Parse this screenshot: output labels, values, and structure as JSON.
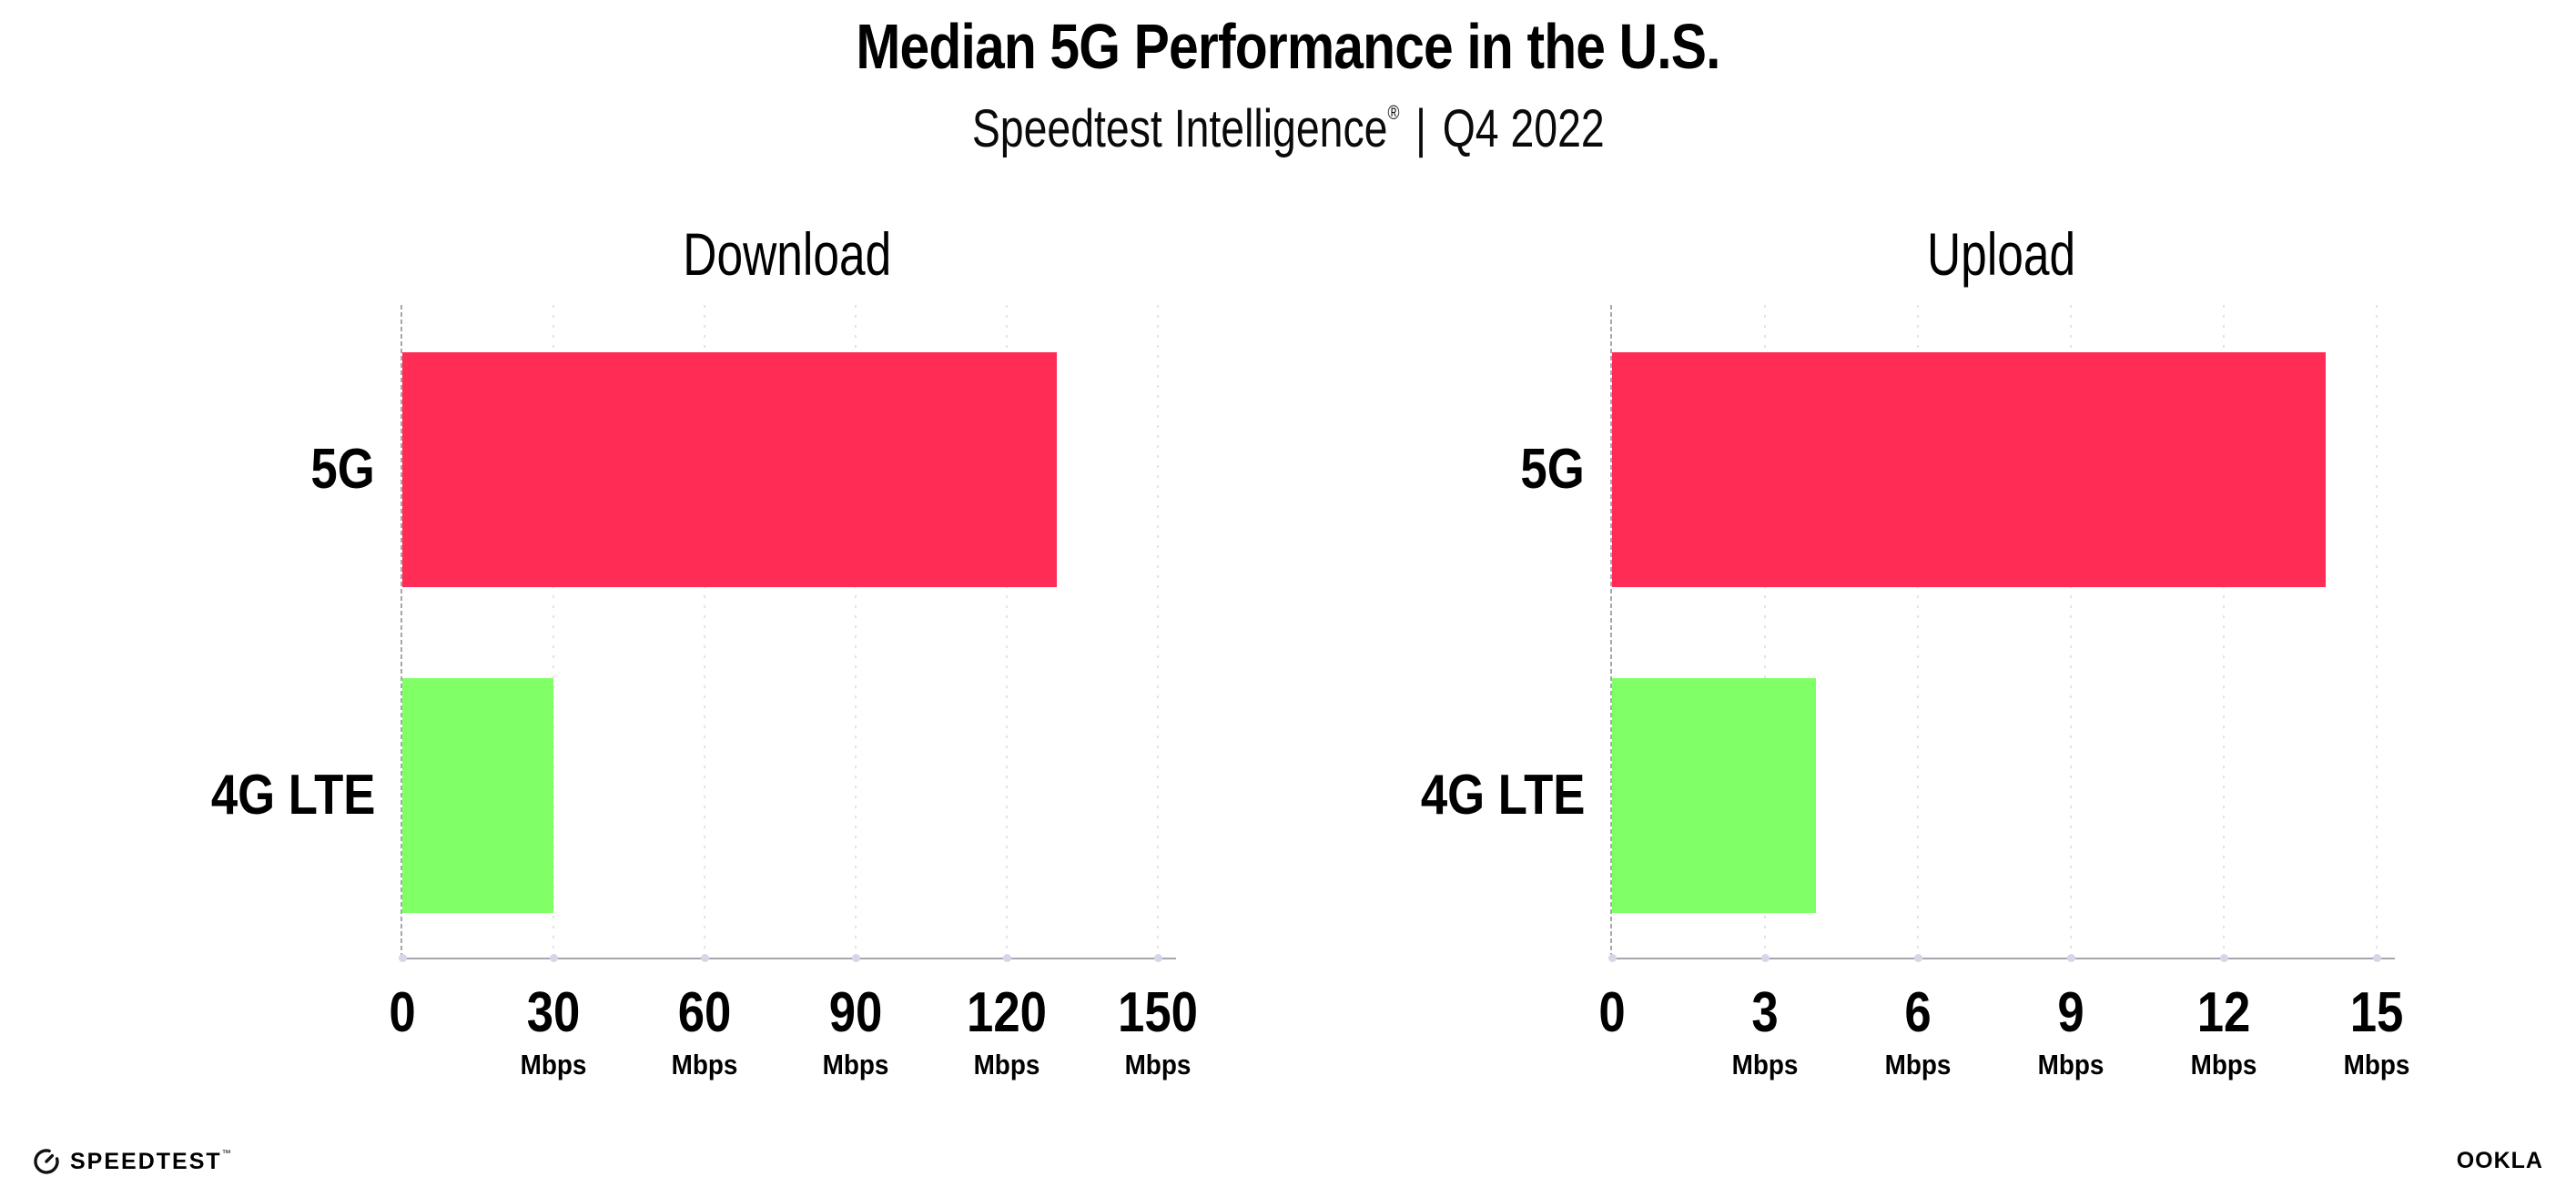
{
  "header": {
    "title": "Median 5G Performance in the U.S.",
    "subtitle_brand": "Speedtest Intelligence",
    "subtitle_reg": "®",
    "subtitle_separator": "|",
    "subtitle_period": "Q4 2022"
  },
  "chart_data": [
    {
      "type": "bar",
      "orientation": "horizontal",
      "title": "Download",
      "categories": [
        "5G",
        "4G LTE"
      ],
      "values": [
        130,
        30
      ],
      "unit": "Mbps",
      "xticks": [
        0,
        30,
        60,
        90,
        120,
        150
      ],
      "xlim": [
        0,
        150
      ],
      "colors": [
        "#FF2D55",
        "#80FF66"
      ],
      "grid": "dotted vertical gridlines at each tick",
      "legend": "none"
    },
    {
      "type": "bar",
      "orientation": "horizontal",
      "title": "Upload",
      "categories": [
        "5G",
        "4G LTE"
      ],
      "values": [
        14,
        4
      ],
      "unit": "Mbps",
      "xticks": [
        0,
        3,
        6,
        9,
        12,
        15
      ],
      "xlim": [
        0,
        15
      ],
      "colors": [
        "#FF2D55",
        "#80FF66"
      ],
      "grid": "dotted vertical gridlines at each tick",
      "legend": "none"
    }
  ],
  "footer": {
    "speedtest_label": "SPEEDTEST",
    "speedtest_mark": "™",
    "ookla_label": "OOKLA",
    "ookla_mark": "®"
  },
  "colors": {
    "bar_5g": "#FF2D55",
    "bar_4g_lte": "#80FF66",
    "axis_line": "#A6A6AC",
    "gridline_dots": "#E2E2EE",
    "tick_dot": "#D3D7E8",
    "text": "#000000",
    "background": "#FFFFFF"
  }
}
